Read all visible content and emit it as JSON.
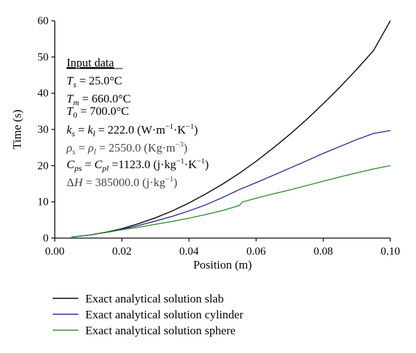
{
  "chart_data": {
    "type": "line",
    "xlabel": "Position (m)",
    "ylabel": "Time (s)",
    "xlim": [
      0.0,
      0.1
    ],
    "ylim": [
      0,
      60
    ],
    "xticks": [
      0.0,
      0.02,
      0.04,
      0.06,
      0.08,
      0.1
    ],
    "xtick_labels": [
      "0.00",
      "0.02",
      "0.04",
      "0.06",
      "0.08",
      "0.10"
    ],
    "yticks": [
      0,
      10,
      20,
      30,
      40,
      50,
      60
    ],
    "ytick_labels": [
      "0",
      "10",
      "20",
      "30",
      "40",
      "50",
      "60"
    ],
    "grid": false,
    "legend_position": "bottom-left-below",
    "series": [
      {
        "name": "Exact analytical solution slab",
        "color": "#000000",
        "x": [
          0.005,
          0.01,
          0.015,
          0.02,
          0.025,
          0.03,
          0.035,
          0.04,
          0.045,
          0.05,
          0.055,
          0.06,
          0.065,
          0.07,
          0.075,
          0.08,
          0.085,
          0.09,
          0.095,
          0.1
        ],
        "y": [
          0.3,
          0.8,
          1.6,
          2.6,
          4.0,
          5.6,
          7.5,
          9.7,
          12.2,
          14.9,
          17.9,
          21.2,
          24.8,
          28.6,
          32.7,
          37.1,
          41.7,
          46.6,
          51.8,
          60.0
        ]
      },
      {
        "name": "Exact analytical solution cylinder",
        "color": "#2b2b8c",
        "x": [
          0.005,
          0.01,
          0.015,
          0.02,
          0.025,
          0.03,
          0.035,
          0.04,
          0.045,
          0.05,
          0.055,
          0.06,
          0.065,
          0.07,
          0.075,
          0.08,
          0.085,
          0.09,
          0.095,
          0.1
        ],
        "y": [
          0.3,
          0.8,
          1.6,
          2.4,
          3.5,
          4.7,
          6.0,
          7.5,
          9.2,
          11.2,
          13.4,
          15.3,
          17.3,
          19.3,
          21.3,
          23.4,
          25.3,
          27.2,
          28.9,
          29.7
        ]
      },
      {
        "name": "Exact analytical solution sphere",
        "color": "#2f8f2f",
        "x": [
          0.005,
          0.01,
          0.015,
          0.02,
          0.025,
          0.03,
          0.035,
          0.04,
          0.045,
          0.05,
          0.055,
          0.056,
          0.06,
          0.065,
          0.07,
          0.075,
          0.08,
          0.085,
          0.09,
          0.095,
          0.1
        ],
        "y": [
          0.3,
          0.8,
          1.5,
          2.3,
          3.0,
          3.8,
          4.6,
          5.5,
          6.5,
          7.6,
          9.0,
          10.0,
          11.0,
          12.2,
          13.3,
          14.5,
          15.7,
          16.9,
          18.0,
          19.1,
          20.0
        ]
      }
    ],
    "annotation": {
      "heading": "Input data",
      "lines": [
        "T_s = 25.0°C",
        "T_m = 660.0°C",
        "T_0 = 700.0°C",
        "k_s = k_l = 222.0 (W·m⁻¹·K⁻¹)",
        "ρ_s = ρ_l = 2550.0 (Kg·m⁻³)",
        "C_ps = C_pl = 1123.0 (j·kg⁻¹·K⁻¹)",
        "ΔH = 385000.0 (j·kg⁻¹)"
      ]
    }
  }
}
